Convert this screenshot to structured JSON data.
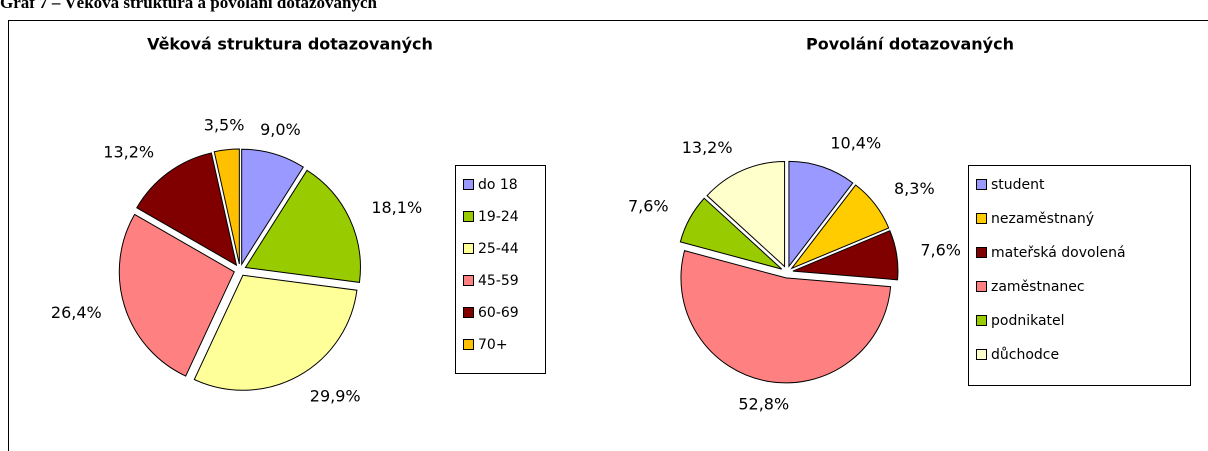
{
  "caption": "Graf 7 – Věková struktura a povolání dotazovaných",
  "chart_data": [
    {
      "type": "pie",
      "title": "Věková struktura dotazovaných",
      "categories": [
        "do 18",
        "19-24",
        "25-44",
        "45-59",
        "60-69",
        "70+"
      ],
      "values": [
        9.0,
        18.1,
        29.9,
        26.4,
        13.2,
        3.5
      ],
      "value_labels": [
        "9,0%",
        "18,1%",
        "29,9%",
        "26,4%",
        "13,2%",
        "3,5%"
      ],
      "colors": [
        "#9999ff",
        "#99cc00",
        "#ffff99",
        "#ff8080",
        "#800000",
        "#ffc000"
      ],
      "legend": "right"
    },
    {
      "type": "pie",
      "title": "Povolání dotazovaných",
      "categories": [
        "student",
        "nezaměstnaný",
        "mateřská dovolená",
        "zaměstnanec",
        "podnikatel",
        "důchodce"
      ],
      "values": [
        10.4,
        8.3,
        7.6,
        52.8,
        7.6,
        13.2
      ],
      "value_labels": [
        "10,4%",
        "8,3%",
        "7,6%",
        "52,8%",
        "7,6%",
        "13,2%"
      ],
      "colors": [
        "#9999ff",
        "#ffcc00",
        "#800000",
        "#ff8080",
        "#99cc00",
        "#ffffcc"
      ],
      "legend": "right"
    }
  ]
}
